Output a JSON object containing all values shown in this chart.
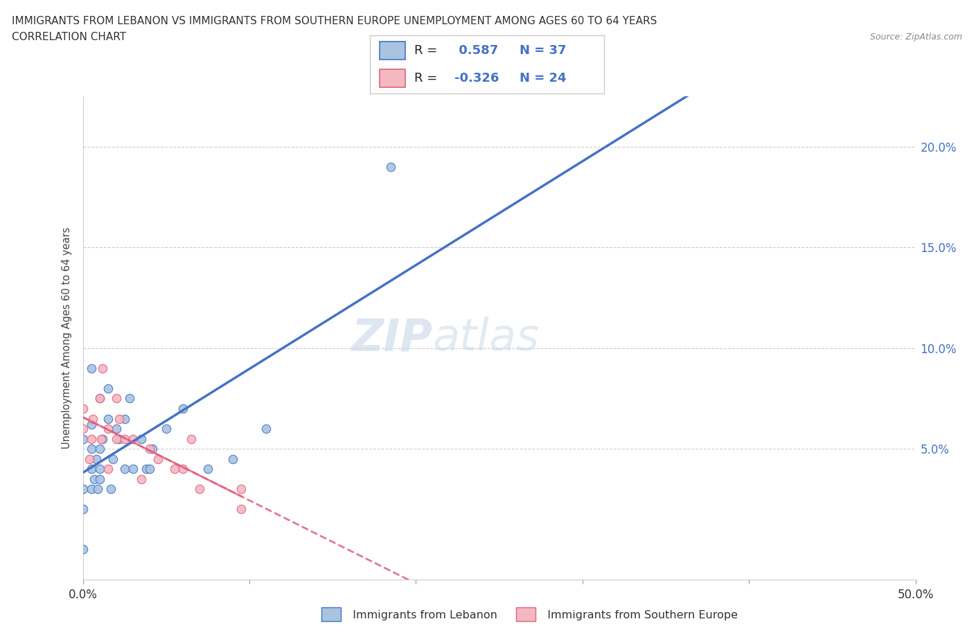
{
  "title_line1": "IMMIGRANTS FROM LEBANON VS IMMIGRANTS FROM SOUTHERN EUROPE UNEMPLOYMENT AMONG AGES 60 TO 64 YEARS",
  "title_line2": "CORRELATION CHART",
  "source": "Source: ZipAtlas.com",
  "ylabel": "Unemployment Among Ages 60 to 64 years",
  "r_lebanon": 0.587,
  "n_lebanon": 37,
  "r_southern": -0.326,
  "n_southern": 24,
  "lebanon_color": "#a8c4e0",
  "lebanon_line_color": "#4472c4",
  "southern_color": "#f4b8c1",
  "southern_line_color": "#e06080",
  "lebanon_x": [
    0.0,
    0.0,
    0.0,
    0.0,
    0.005,
    0.005,
    0.005,
    0.005,
    0.005,
    0.007,
    0.008,
    0.009,
    0.01,
    0.01,
    0.01,
    0.01,
    0.012,
    0.015,
    0.015,
    0.017,
    0.018,
    0.02,
    0.022,
    0.025,
    0.025,
    0.028,
    0.03,
    0.035,
    0.038,
    0.04,
    0.042,
    0.05,
    0.06,
    0.075,
    0.09,
    0.11,
    0.185
  ],
  "lebanon_y": [
    0.0,
    0.02,
    0.03,
    0.055,
    0.03,
    0.04,
    0.05,
    0.062,
    0.09,
    0.035,
    0.045,
    0.03,
    0.035,
    0.04,
    0.05,
    0.075,
    0.055,
    0.065,
    0.08,
    0.03,
    0.045,
    0.06,
    0.055,
    0.065,
    0.04,
    0.075,
    0.04,
    0.055,
    0.04,
    0.04,
    0.05,
    0.06,
    0.07,
    0.04,
    0.045,
    0.06,
    0.19
  ],
  "southern_x": [
    0.0,
    0.0,
    0.004,
    0.005,
    0.006,
    0.01,
    0.011,
    0.012,
    0.015,
    0.015,
    0.02,
    0.02,
    0.022,
    0.025,
    0.03,
    0.035,
    0.04,
    0.045,
    0.055,
    0.06,
    0.065,
    0.07,
    0.095,
    0.095
  ],
  "southern_y": [
    0.06,
    0.07,
    0.045,
    0.055,
    0.065,
    0.075,
    0.055,
    0.09,
    0.06,
    0.04,
    0.055,
    0.075,
    0.065,
    0.055,
    0.055,
    0.035,
    0.05,
    0.045,
    0.04,
    0.04,
    0.055,
    0.03,
    0.02,
    0.03
  ],
  "xlim": [
    0.0,
    0.5
  ],
  "ylim": [
    -0.015,
    0.225
  ],
  "ytick_vals": [
    0.05,
    0.1,
    0.15,
    0.2
  ],
  "ytick_labels": [
    "5.0%",
    "10.0%",
    "15.0%",
    "20.0%"
  ],
  "xtick_vals": [
    0.0,
    0.1,
    0.2,
    0.3,
    0.4,
    0.5
  ],
  "xtick_labels": [
    "0.0%",
    "",
    "",
    "",
    "",
    "50.0%"
  ]
}
